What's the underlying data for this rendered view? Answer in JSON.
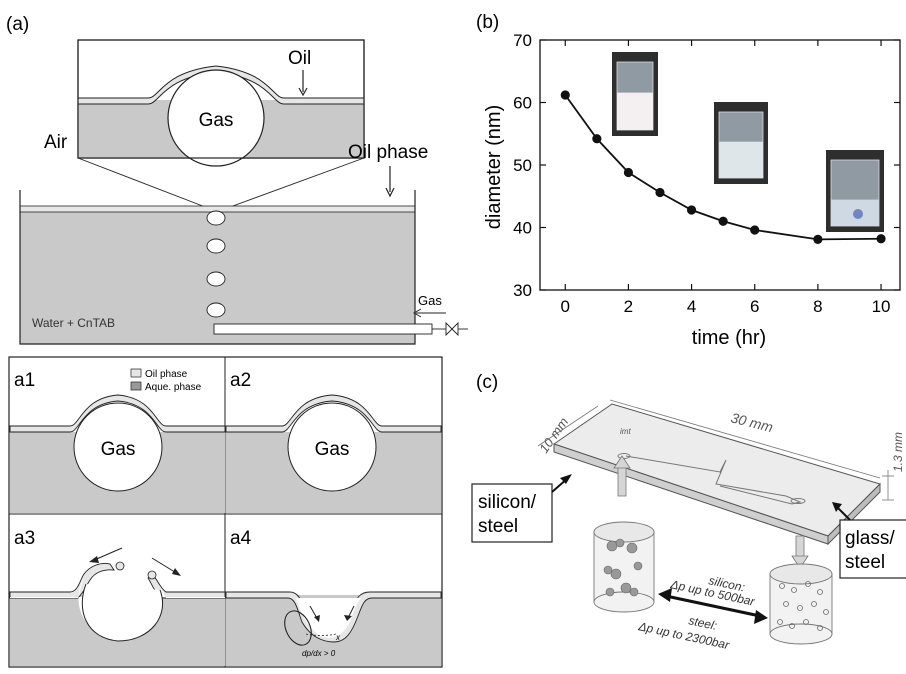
{
  "panel_a": {
    "label": "(a)",
    "inset": {
      "oil": "Oil",
      "gas": "Gas"
    },
    "air": "Air",
    "oil_phase": "Oil phase",
    "water": "Water + CnTAB",
    "gas_inlet": "Gas"
  },
  "subpanels": {
    "a1": {
      "label": "a1",
      "gas": "Gas",
      "legend_oil": "Oil phase",
      "legend_aq": "Aque. phase"
    },
    "a2": {
      "label": "a2",
      "gas": "Gas"
    },
    "a3": {
      "label": "a3"
    },
    "a4": {
      "label": "a4",
      "x_label": "x",
      "deriv": "dp/dx > 0"
    }
  },
  "panel_b": {
    "label": "(b)",
    "chart_data": {
      "type": "line",
      "title": "",
      "xlabel": "time (hr)",
      "ylabel": "diameter (nm)",
      "xlim": [
        -0.8,
        10.6
      ],
      "ylim": [
        30,
        70
      ],
      "x_ticks": [
        "0",
        "2",
        "4",
        "6",
        "8",
        "10"
      ],
      "y_ticks": [
        "30",
        "40",
        "50",
        "60",
        "70"
      ],
      "grid": false,
      "series": [
        {
          "x": [
            0,
            1,
            2,
            3,
            4,
            5,
            6,
            8,
            10
          ],
          "y": [
            61.2,
            54.2,
            48.8,
            45.6,
            42.8,
            41.0,
            39.6,
            38.1,
            38.2
          ]
        }
      ]
    },
    "photos": [
      "beaker-milky",
      "beaker-partial",
      "beaker-clear"
    ]
  },
  "panel_c": {
    "label": "(c)",
    "dim_width": "10 mm",
    "dim_length": "30 mm",
    "dim_height": "1.3 mm",
    "logo": "imt",
    "left_label": "silicon/\nsteel",
    "right_label": "glass/\nsteel",
    "silicon_text_1": "silicon:",
    "silicon_text_2": "Δp up to 500bar",
    "steel_text_1": "steel:",
    "steel_text_2": "Δp up to 2300bar"
  },
  "colors": {
    "aqueous": "#c9c9c9",
    "oil": "#e6e6e6",
    "line": "#222222",
    "chip": "#e9e9e9"
  }
}
